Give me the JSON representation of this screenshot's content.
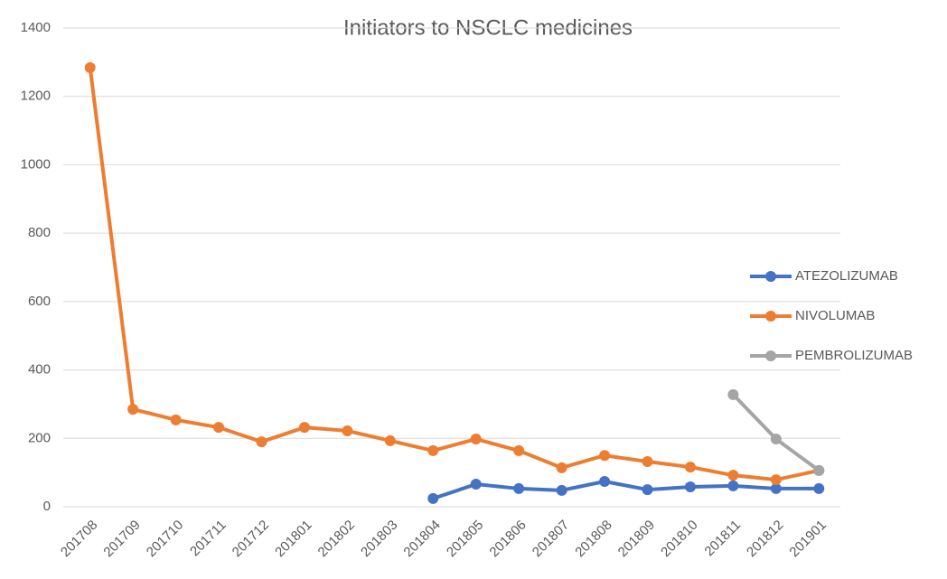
{
  "chart_data": {
    "type": "line",
    "title": "Initiators to NSCLC medicines",
    "categories": [
      "201708",
      "201709",
      "201710",
      "201711",
      "201712",
      "201801",
      "201802",
      "201803",
      "201804",
      "201805",
      "201806",
      "201807",
      "201808",
      "201809",
      "201810",
      "201811",
      "201812",
      "201901"
    ],
    "series": [
      {
        "name": "ATEZOLIZUMAB",
        "color": "#4472c4",
        "values": [
          null,
          null,
          null,
          null,
          null,
          null,
          null,
          null,
          24,
          66,
          53,
          48,
          74,
          50,
          58,
          61,
          53,
          53
        ]
      },
      {
        "name": "NIVOLUMAB",
        "color": "#ed7d31",
        "values": [
          1284,
          285,
          254,
          232,
          190,
          232,
          222,
          193,
          164,
          198,
          164,
          114,
          150,
          132,
          116,
          92,
          79,
          106
        ]
      },
      {
        "name": "PEMBROLIZUMAB",
        "color": "#a5a5a5",
        "values": [
          null,
          null,
          null,
          null,
          null,
          null,
          null,
          null,
          null,
          null,
          null,
          null,
          null,
          null,
          null,
          328,
          198,
          106
        ]
      }
    ],
    "ylim": [
      0,
      1400
    ],
    "yticks": [
      0,
      200,
      400,
      600,
      800,
      1000,
      1200,
      1400
    ],
    "grid": true,
    "legend": "right"
  }
}
